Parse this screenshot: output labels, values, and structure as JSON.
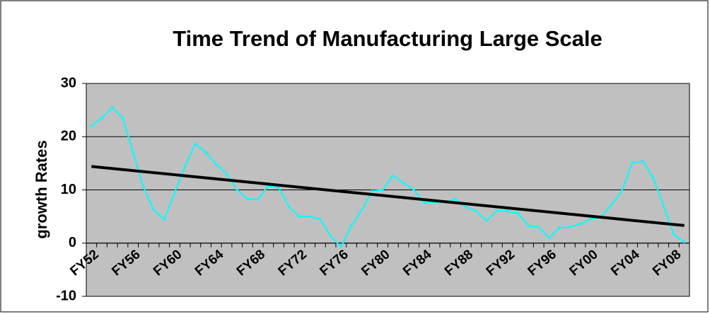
{
  "chart_data": {
    "type": "line",
    "title": "Time Trend of Manufacturing Large Scale",
    "y_label": "growth Rates",
    "categories": [
      "FY52",
      null,
      null,
      null,
      "FY56",
      null,
      null,
      null,
      "FY60",
      null,
      null,
      null,
      "FY64",
      null,
      null,
      null,
      "FY68",
      null,
      null,
      null,
      "FY72",
      null,
      null,
      null,
      "FY76",
      null,
      null,
      null,
      "FY80",
      null,
      null,
      null,
      "FY84",
      null,
      null,
      null,
      "FY88",
      null,
      null,
      null,
      "FY92",
      null,
      null,
      null,
      "FY96",
      null,
      null,
      null,
      "FY00",
      null,
      null,
      null,
      "FY04",
      null,
      null,
      null,
      "FY08",
      null
    ],
    "series": [
      {
        "color": "#00ffff",
        "values": [
          22,
          23.5,
          25.5,
          23.5,
          17,
          10.5,
          6.2,
          4.4,
          9.5,
          14.5,
          18.7,
          17,
          14.8,
          13,
          10,
          8.3,
          8.2,
          10.8,
          10.4,
          6.8,
          5,
          5,
          4.5,
          1.3,
          -0.7,
          3.3,
          6.2,
          9.8,
          10,
          12.7,
          11.3,
          10,
          7.5,
          7.7,
          7.7,
          8.3,
          6.8,
          6,
          4.2,
          6.1,
          6,
          5.6,
          3.3,
          3,
          1,
          2.9,
          3,
          3.6,
          4.5,
          5,
          7.2,
          9.8,
          15.1,
          15.4,
          12.3,
          7,
          1.6,
          0.2
        ]
      }
    ],
    "trend": {
      "color": "#000000",
      "values": [
        14.4,
        3.3
      ]
    },
    "ylim": [
      -10,
      30
    ],
    "yticks": [
      -10,
      0,
      10,
      20,
      30
    ],
    "grid": true,
    "plot_color": "#c0c0c0"
  }
}
